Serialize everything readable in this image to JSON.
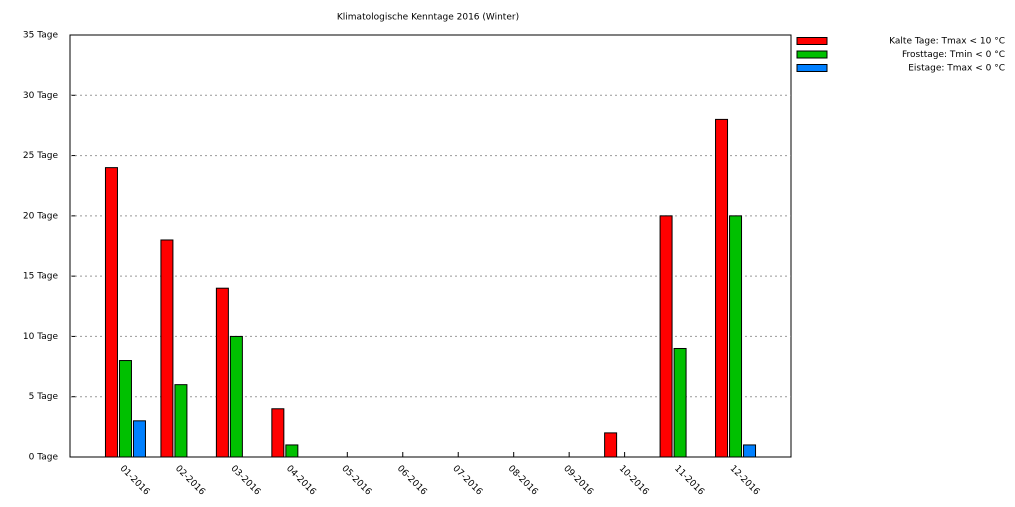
{
  "chart_data": {
    "type": "bar",
    "title": "Klimatologische Kenntage 2016 (Winter)",
    "categories": [
      "01-2016",
      "02-2016",
      "03-2016",
      "04-2016",
      "05-2016",
      "06-2016",
      "07-2016",
      "08-2016",
      "09-2016",
      "10-2016",
      "11-2016",
      "12-2016"
    ],
    "series": [
      {
        "name": "Kalte Tage: Tmax < 10 °C",
        "color": "#ff0000",
        "values": [
          24,
          18,
          14,
          4,
          0,
          0,
          0,
          0,
          0,
          2,
          20,
          28
        ]
      },
      {
        "name": "Frosttage: Tmin < 0 °C",
        "color": "#00c000",
        "values": [
          8,
          6,
          10,
          1,
          0,
          0,
          0,
          0,
          0,
          0,
          9,
          20
        ]
      },
      {
        "name": "Eistage: Tmax < 0 °C",
        "color": "#0080ff",
        "values": [
          3,
          0,
          0,
          0,
          0,
          0,
          0,
          0,
          0,
          0,
          0,
          1
        ]
      }
    ],
    "ylim": [
      0,
      35
    ],
    "yticks": [
      {
        "value": 0,
        "label": "0 Tage"
      },
      {
        "value": 5,
        "label": "5 Tage"
      },
      {
        "value": 10,
        "label": "10 Tage"
      },
      {
        "value": 15,
        "label": "15 Tage"
      },
      {
        "value": 20,
        "label": "20 Tage"
      },
      {
        "value": 25,
        "label": "25 Tage"
      },
      {
        "value": 30,
        "label": "30 Tage"
      },
      {
        "value": 35,
        "label": "35 Tage"
      }
    ],
    "grid": true,
    "legend": "right"
  }
}
